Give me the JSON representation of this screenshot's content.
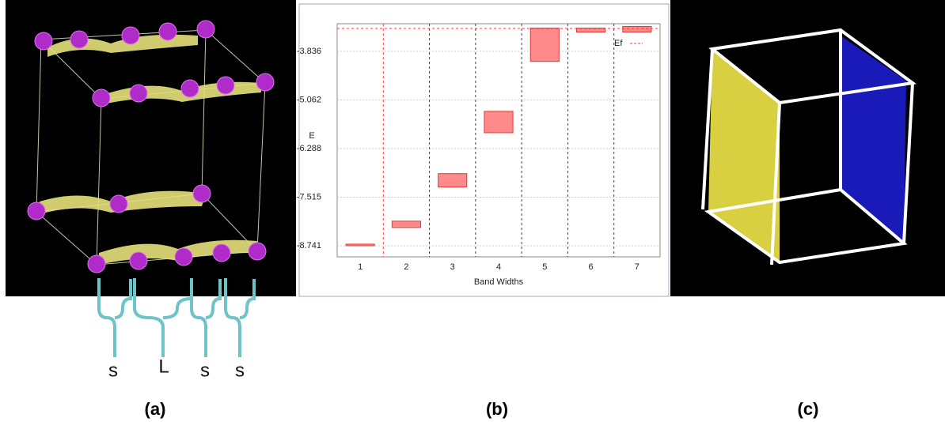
{
  "chart_data": {
    "type": "floating-bar",
    "categories": [
      "1",
      "2",
      "3",
      "4",
      "5",
      "6",
      "7"
    ],
    "values": [
      [
        -8.74,
        -8.7
      ],
      [
        -8.28,
        -8.12
      ],
      [
        -7.26,
        -6.92
      ],
      [
        -5.89,
        -5.35
      ],
      [
        -4.09,
        -3.25
      ],
      [
        -3.35,
        -3.25
      ],
      [
        -3.35,
        -3.21
      ]
    ],
    "color": "#ff8a8a",
    "edge_color": "#e23a3a",
    "ylim": [
      -9.02,
      -3.14
    ],
    "yticks": [
      -8.741,
      -7.515,
      -6.288,
      -5.062,
      -3.836
    ],
    "xlabel": "Band Widths",
    "ylabel": "E",
    "reference_line": {
      "name": "Ef",
      "value": -3.26,
      "color": "#ff3b3b"
    },
    "legend": "upper-right",
    "grid": true
  },
  "panel_a": {
    "labels": [
      "s",
      "L",
      "s",
      "s"
    ],
    "caption": "(a)"
  },
  "panel_b": {
    "caption": "(b)"
  },
  "panel_c": {
    "caption": "(c)"
  }
}
